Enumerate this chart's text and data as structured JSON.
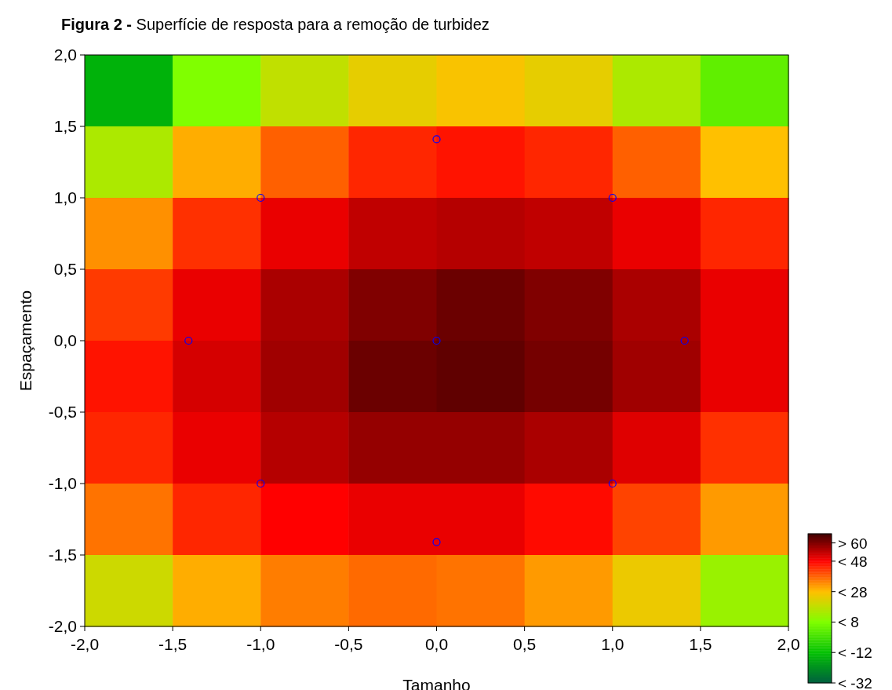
{
  "chart_data": [
    {
      "type": "heatmap",
      "title": "Figura 2 - Superfície de resposta para a remoção de turbidez",
      "xlabel": "Tamanho",
      "ylabel": "Espaçamento",
      "xlim": [
        -2,
        2
      ],
      "ylim": [
        -2,
        2
      ],
      "xticks": [
        {
          "value": -2,
          "label": "-2,0"
        },
        {
          "value": -1.5,
          "label": "-1,5"
        },
        {
          "value": -1,
          "label": "-1,0"
        },
        {
          "value": -0.5,
          "label": "-0,5"
        },
        {
          "value": 0,
          "label": "0,0"
        },
        {
          "value": 0.5,
          "label": "0,5"
        },
        {
          "value": 1,
          "label": "1,0"
        },
        {
          "value": 1.5,
          "label": "1,5"
        },
        {
          "value": 2,
          "label": "2,0"
        }
      ],
      "yticks": [
        {
          "value": -2,
          "label": "-2,0"
        },
        {
          "value": -1.5,
          "label": "-1,5"
        },
        {
          "value": -1,
          "label": "-1,0"
        },
        {
          "value": -0.5,
          "label": "-0,5"
        },
        {
          "value": 0,
          "label": "0,0"
        },
        {
          "value": 0.5,
          "label": "0,5"
        },
        {
          "value": 1,
          "label": "1,0"
        },
        {
          "value": 1.5,
          "label": "1,5"
        },
        {
          "value": 2,
          "label": "2,0"
        }
      ],
      "clim": [
        -32,
        66
      ],
      "cticks": [
        {
          "value": 60,
          "label": "> 60"
        },
        {
          "value": 48,
          "label": "< 48"
        },
        {
          "value": 28,
          "label": "< 28"
        },
        {
          "value": 8,
          "label": "< 8"
        },
        {
          "value": -12,
          "label": "< -12"
        },
        {
          "value": -32,
          "label": "< -32"
        }
      ],
      "colors": [
        "#800000",
        "#ff0000",
        "#ffc000",
        "#80ff00",
        "#00c000",
        "#006040"
      ],
      "cells": [
        [
          -15,
          8,
          18,
          24,
          27,
          24,
          15,
          3
        ],
        [
          15,
          30,
          38,
          44,
          46,
          44,
          38,
          28
        ],
        [
          33,
          43,
          50,
          54,
          55,
          54,
          50,
          44
        ],
        [
          42,
          50,
          56,
          60,
          62,
          60,
          56,
          50
        ],
        [
          46,
          52,
          57,
          62,
          63,
          61,
          57,
          50
        ],
        [
          44,
          50,
          55,
          58,
          58,
          56,
          51,
          43
        ],
        [
          36,
          44,
          48,
          50,
          50,
          47,
          41,
          32
        ],
        [
          20,
          30,
          35,
          37,
          36,
          32,
          25,
          12
        ]
      ],
      "series": [
        {
          "type": "scatter",
          "color": "#0000ff",
          "marker": "circle",
          "x": [
            0,
            -1,
            1,
            -1.41,
            0,
            1.41,
            -1,
            1,
            0
          ],
          "values": [
            1.41,
            1,
            1,
            0,
            0,
            0,
            -1,
            -1,
            -1.41
          ]
        }
      ]
    }
  ]
}
